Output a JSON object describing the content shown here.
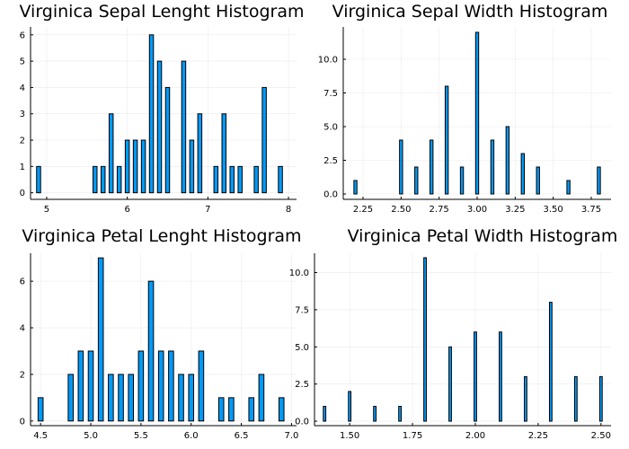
{
  "chart_data": [
    {
      "type": "bar",
      "title": "Virginica Sepal Lenght Histogram",
      "xlim": [
        4.8,
        8.1
      ],
      "ylim": [
        -0.25,
        6.3
      ],
      "xticks": [
        5,
        6,
        7,
        8
      ],
      "xtick_labels": [
        "5",
        "6",
        "7",
        "8"
      ],
      "yticks": [
        0,
        1,
        2,
        3,
        4,
        5,
        6
      ],
      "ytick_labels": [
        "0",
        "1",
        "2",
        "3",
        "4",
        "5",
        "6"
      ],
      "bin_width": 0.05,
      "grid": true,
      "bars": [
        {
          "x": 4.9,
          "y": 1
        },
        {
          "x": 5.6,
          "y": 1
        },
        {
          "x": 5.7,
          "y": 1
        },
        {
          "x": 5.8,
          "y": 3
        },
        {
          "x": 5.9,
          "y": 1
        },
        {
          "x": 6.0,
          "y": 2
        },
        {
          "x": 6.1,
          "y": 2
        },
        {
          "x": 6.2,
          "y": 2
        },
        {
          "x": 6.3,
          "y": 6
        },
        {
          "x": 6.4,
          "y": 5
        },
        {
          "x": 6.5,
          "y": 4
        },
        {
          "x": 6.7,
          "y": 5
        },
        {
          "x": 6.8,
          "y": 2
        },
        {
          "x": 6.9,
          "y": 3
        },
        {
          "x": 7.1,
          "y": 1
        },
        {
          "x": 7.2,
          "y": 3
        },
        {
          "x": 7.3,
          "y": 1
        },
        {
          "x": 7.4,
          "y": 1
        },
        {
          "x": 7.6,
          "y": 1
        },
        {
          "x": 7.7,
          "y": 4
        },
        {
          "x": 7.9,
          "y": 1
        }
      ]
    },
    {
      "type": "bar",
      "title": "Virginica Sepal Width Histogram",
      "xlim": [
        2.12,
        3.88
      ],
      "ylim": [
        -0.4,
        12.4
      ],
      "xticks": [
        2.25,
        2.5,
        2.75,
        3.0,
        3.25,
        3.5,
        3.75
      ],
      "xtick_labels": [
        "2.25",
        "2.50",
        "2.75",
        "3.00",
        "3.25",
        "3.50",
        "3.75"
      ],
      "yticks": [
        0,
        2.5,
        5,
        7.5,
        10
      ],
      "ytick_labels": [
        "0.0",
        "2.5",
        "5.0",
        "7.5",
        "10.0"
      ],
      "bin_width": 0.02,
      "grid": true,
      "bars": [
        {
          "x": 2.2,
          "y": 1
        },
        {
          "x": 2.5,
          "y": 4
        },
        {
          "x": 2.6,
          "y": 2
        },
        {
          "x": 2.7,
          "y": 4
        },
        {
          "x": 2.8,
          "y": 8
        },
        {
          "x": 2.9,
          "y": 2
        },
        {
          "x": 3.0,
          "y": 12
        },
        {
          "x": 3.1,
          "y": 4
        },
        {
          "x": 3.2,
          "y": 5
        },
        {
          "x": 3.3,
          "y": 3
        },
        {
          "x": 3.4,
          "y": 2
        },
        {
          "x": 3.6,
          "y": 1
        },
        {
          "x": 3.8,
          "y": 2
        }
      ]
    },
    {
      "type": "bar",
      "title": "Virginica Petal Lenght Histogram",
      "xlim": [
        4.4,
        7.05
      ],
      "ylim": [
        -0.2,
        7.2
      ],
      "xticks": [
        4.5,
        5.0,
        5.5,
        6.0,
        6.5,
        7.0
      ],
      "xtick_labels": [
        "4.5",
        "5.0",
        "5.5",
        "6.0",
        "6.5",
        "7.0"
      ],
      "yticks": [
        0,
        2,
        4,
        6
      ],
      "ytick_labels": [
        "0",
        "2",
        "4",
        "6"
      ],
      "bin_width": 0.05,
      "grid": true,
      "bars": [
        {
          "x": 4.5,
          "y": 1
        },
        {
          "x": 4.8,
          "y": 2
        },
        {
          "x": 4.9,
          "y": 3
        },
        {
          "x": 5.0,
          "y": 3
        },
        {
          "x": 5.1,
          "y": 7
        },
        {
          "x": 5.2,
          "y": 2
        },
        {
          "x": 5.3,
          "y": 2
        },
        {
          "x": 5.4,
          "y": 2
        },
        {
          "x": 5.5,
          "y": 3
        },
        {
          "x": 5.6,
          "y": 6
        },
        {
          "x": 5.7,
          "y": 3
        },
        {
          "x": 5.8,
          "y": 3
        },
        {
          "x": 5.9,
          "y": 2
        },
        {
          "x": 6.0,
          "y": 2
        },
        {
          "x": 6.1,
          "y": 3
        },
        {
          "x": 6.3,
          "y": 1
        },
        {
          "x": 6.4,
          "y": 1
        },
        {
          "x": 6.6,
          "y": 1
        },
        {
          "x": 6.7,
          "y": 2
        },
        {
          "x": 6.9,
          "y": 1
        }
      ]
    },
    {
      "type": "bar",
      "title": "Virginica Petal Width Histogram",
      "xlim": [
        1.36,
        2.54
      ],
      "ylim": [
        -0.3,
        11.3
      ],
      "xticks": [
        1.5,
        1.75,
        2.0,
        2.25,
        2.5
      ],
      "xtick_labels": [
        "1.50",
        "1.75",
        "2.00",
        "2.25",
        "2.50"
      ],
      "yticks": [
        0,
        2.5,
        5,
        7.5,
        10
      ],
      "ytick_labels": [
        "0.0",
        "2.5",
        "5.0",
        "7.5",
        "10.0"
      ],
      "bin_width": 0.01,
      "grid": true,
      "bars": [
        {
          "x": 1.4,
          "y": 1
        },
        {
          "x": 1.5,
          "y": 2
        },
        {
          "x": 1.6,
          "y": 1
        },
        {
          "x": 1.7,
          "y": 1
        },
        {
          "x": 1.8,
          "y": 11
        },
        {
          "x": 1.9,
          "y": 5
        },
        {
          "x": 2.0,
          "y": 6
        },
        {
          "x": 2.1,
          "y": 6
        },
        {
          "x": 2.2,
          "y": 3
        },
        {
          "x": 2.3,
          "y": 8
        },
        {
          "x": 2.4,
          "y": 3
        },
        {
          "x": 2.5,
          "y": 3
        }
      ]
    }
  ],
  "colors": {
    "bar_fill": "#009af9",
    "bar_stroke": "#000000",
    "background": "#ffffff"
  }
}
